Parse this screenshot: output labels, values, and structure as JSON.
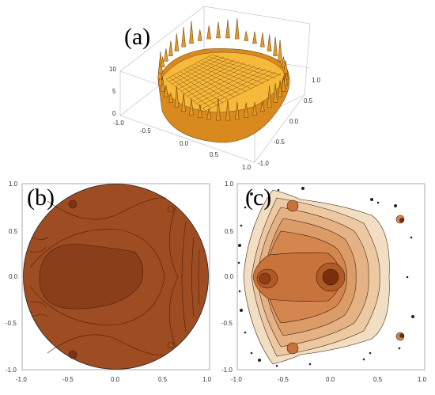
{
  "figure": {
    "panels": [
      {
        "label": "(a)",
        "z_ticks": [
          "10",
          "5",
          "0"
        ],
        "x_ticks": [
          "-0.5",
          "0.0",
          "0.5",
          "1.0"
        ],
        "x_tick_left": "-1.0",
        "y_ticks": [
          "1.0",
          "0.5",
          "0.0",
          "-0.5",
          "-1.0"
        ]
      },
      {
        "label": "(b)",
        "y_ticks": [
          "1.0",
          "0.5",
          "0.0",
          "-0.5",
          "-1.0"
        ],
        "x_ticks": [
          "-1.0",
          "-0.5",
          "0.0",
          "0.5",
          "1.0"
        ]
      },
      {
        "label": "(c)",
        "y_ticks": [
          "1.0",
          "0.5",
          "0.0",
          "-0.5",
          "-1.0"
        ],
        "x_ticks": [
          "-1.0",
          "-0.5",
          "0.0",
          "0.5",
          "1.0"
        ]
      }
    ],
    "colors": {
      "surface": "#f2a52a",
      "surface_dark": "#c9761a",
      "b_fill": "#9e4d23",
      "b_dark": "#7a3516",
      "c_light": "#f0dcc0",
      "c_dark": "#7a2e0c"
    }
  }
}
